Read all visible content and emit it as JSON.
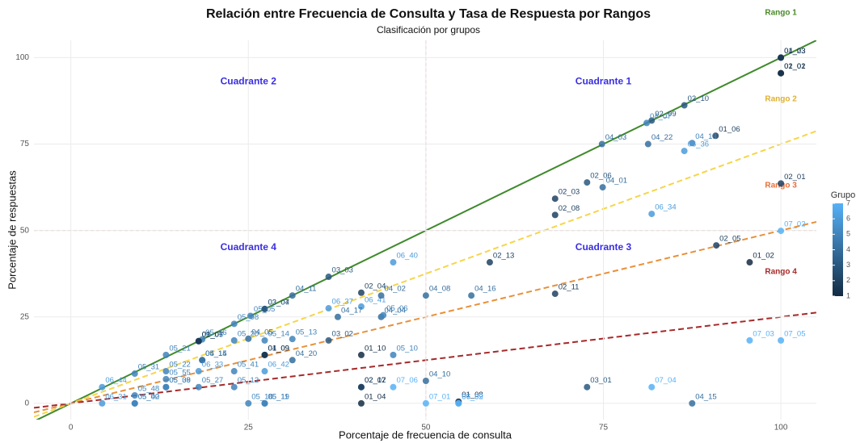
{
  "chart_data": {
    "type": "scatter",
    "title": "Relación entre Frecuencia de Consulta y Tasa de Respuesta por Rangos",
    "subtitle": "Clasificación por grupos",
    "x_label": "Porcentaje de frecuencia de consulta",
    "y_label": "Porcentaje de respuestas",
    "xlim": [
      -5.2,
      105
    ],
    "ylim": [
      -4.7,
      105
    ],
    "xticks": [
      0,
      25,
      50,
      75,
      100
    ],
    "yticks": [
      0,
      25,
      50,
      75,
      100
    ],
    "grid": true,
    "thresholds": {
      "x": 50,
      "y": 50
    },
    "quadrants": [
      "Cuadrante 1",
      "Cuadrante 2",
      "Cuadrante 3",
      "Cuadrante 4"
    ],
    "reference_lines": [
      {
        "name": "Rango 1",
        "slope": 1,
        "color": "#3f8a2c",
        "label_color": "#4a8a2a",
        "dashed": false
      },
      {
        "name": "Rango 2",
        "slope": 0.75,
        "color": "#f6d54a",
        "label_color": "#e0b030",
        "dashed": true
      },
      {
        "name": "Rango 3",
        "slope": 0.5,
        "color": "#e8903a",
        "label_color": "#e8703a",
        "dashed": true
      },
      {
        "name": "Rango 4",
        "slope": 0.25,
        "color": "#a52a2a",
        "label_color": "#a52a2a",
        "dashed": true
      }
    ],
    "legend": {
      "title": "Grupo",
      "ticks": [
        1,
        2,
        3,
        4,
        5,
        6,
        7
      ],
      "color_low": "#132b43",
      "color_high": "#56b1f7"
    },
    "points": [
      {
        "label": "04_23",
        "x": 100,
        "y": 100,
        "group": 4
      },
      {
        "label": "01_03",
        "x": 100,
        "y": 100,
        "group": 1
      },
      {
        "label": "02_02",
        "x": 100,
        "y": 95.5,
        "group": 2
      },
      {
        "label": "01_01",
        "x": 100,
        "y": 95.5,
        "group": 1
      },
      {
        "label": "02_10",
        "x": 86.4,
        "y": 86.2,
        "group": 3
      },
      {
        "label": "02_09",
        "x": 81.8,
        "y": 81.8,
        "group": 3
      },
      {
        "label": "04_07",
        "x": 81.1,
        "y": 81.1,
        "group": 5
      },
      {
        "label": "01_06",
        "x": 90.8,
        "y": 77.4,
        "group": 2
      },
      {
        "label": "04_22",
        "x": 81.3,
        "y": 75,
        "group": 4
      },
      {
        "label": "04_13",
        "x": 87.5,
        "y": 75.3,
        "group": 5
      },
      {
        "label": "06_36",
        "x": 86.4,
        "y": 73,
        "group": 6
      },
      {
        "label": "04_03",
        "x": 74.8,
        "y": 75,
        "group": 4
      },
      {
        "label": "02_06",
        "x": 72.7,
        "y": 63.9,
        "group": 3
      },
      {
        "label": "04_01",
        "x": 74.9,
        "y": 62.5,
        "group": 4
      },
      {
        "label": "02_03",
        "x": 68.2,
        "y": 59.2,
        "group": 2
      },
      {
        "label": "02_08",
        "x": 68.2,
        "y": 54.5,
        "group": 2
      },
      {
        "label": "06_34",
        "x": 81.8,
        "y": 54.8,
        "group": 6
      },
      {
        "label": "02_01",
        "x": 100,
        "y": 63.6,
        "group": 2
      },
      {
        "label": "07_02",
        "x": 100,
        "y": 49.9,
        "group": 7
      },
      {
        "label": "02_05",
        "x": 90.9,
        "y": 45.7,
        "group": 2
      },
      {
        "label": "01_02",
        "x": 95.6,
        "y": 40.8,
        "group": 1
      },
      {
        "label": "07_05",
        "x": 100,
        "y": 18.2,
        "group": 7
      },
      {
        "label": "07_03",
        "x": 95.6,
        "y": 18.2,
        "group": 7
      },
      {
        "label": "04_15",
        "x": 87.5,
        "y": 0,
        "group": 4
      },
      {
        "label": "07_04",
        "x": 81.8,
        "y": 4.7,
        "group": 7
      },
      {
        "label": "03_01",
        "x": 72.7,
        "y": 4.7,
        "group": 3
      },
      {
        "label": "02_13",
        "x": 59,
        "y": 40.8,
        "group": 2
      },
      {
        "label": "04_16",
        "x": 56.4,
        "y": 31.2,
        "group": 4
      },
      {
        "label": "02_11",
        "x": 68.2,
        "y": 31.7,
        "group": 2
      },
      {
        "label": "01_08",
        "x": 54.6,
        "y": 0.5,
        "group": 1
      },
      {
        "label": "06_32",
        "x": 54.6,
        "y": 0,
        "group": 6
      },
      {
        "label": "07_09",
        "x": 54.6,
        "y": 0,
        "group": 7
      },
      {
        "label": "07_01",
        "x": 50,
        "y": 0,
        "group": 7
      },
      {
        "label": "04_10",
        "x": 50,
        "y": 6.5,
        "group": 4
      },
      {
        "label": "04_08",
        "x": 50,
        "y": 31.2,
        "group": 4
      },
      {
        "label": "05_10",
        "x": 45.4,
        "y": 14,
        "group": 5
      },
      {
        "label": "07_06",
        "x": 45.4,
        "y": 4.7,
        "group": 7
      },
      {
        "label": "06_40",
        "x": 45.4,
        "y": 40.8,
        "group": 6
      },
      {
        "label": "01_10",
        "x": 40.9,
        "y": 14,
        "group": 1
      },
      {
        "label": "02_07",
        "x": 40.9,
        "y": 4.7,
        "group": 2
      },
      {
        "label": "02_12",
        "x": 40.9,
        "y": 4.7,
        "group": 2
      },
      {
        "label": "01_04",
        "x": 40.9,
        "y": 0,
        "group": 1
      },
      {
        "label": "02_04",
        "x": 40.9,
        "y": 32,
        "group": 2
      },
      {
        "label": "06_41",
        "x": 40.9,
        "y": 28,
        "group": 6
      },
      {
        "label": "04_02",
        "x": 43.7,
        "y": 31.2,
        "group": 4
      },
      {
        "label": "04_04",
        "x": 43.7,
        "y": 25,
        "group": 4
      },
      {
        "label": "05_06",
        "x": 44,
        "y": 25.5,
        "group": 5
      },
      {
        "label": "03_02",
        "x": 36.3,
        "y": 18.2,
        "group": 3
      },
      {
        "label": "04_17",
        "x": 37.6,
        "y": 25,
        "group": 4
      },
      {
        "label": "06_37",
        "x": 36.3,
        "y": 27.5,
        "group": 6
      },
      {
        "label": "03_03",
        "x": 36.3,
        "y": 36.6,
        "group": 3
      },
      {
        "label": "04_11",
        "x": 31.2,
        "y": 31.2,
        "group": 4
      },
      {
        "label": "03_04",
        "x": 27.3,
        "y": 27.3,
        "group": 3
      },
      {
        "label": "03_07",
        "x": 27.3,
        "y": 27.3,
        "group": 3
      },
      {
        "label": "05_05",
        "x": 25.3,
        "y": 25.3,
        "group": 5
      },
      {
        "label": "05_08",
        "x": 23,
        "y": 23,
        "group": 5
      },
      {
        "label": "05_13",
        "x": 31.2,
        "y": 18.6,
        "group": 5
      },
      {
        "label": "05_14",
        "x": 27.3,
        "y": 18.2,
        "group": 5
      },
      {
        "label": "04_20",
        "x": 31.2,
        "y": 12.5,
        "group": 4
      },
      {
        "label": "04_05",
        "x": 25,
        "y": 18.7,
        "group": 4
      },
      {
        "label": "04_09",
        "x": 27.3,
        "y": 14,
        "group": 4
      },
      {
        "label": "01_09",
        "x": 27.3,
        "y": 14,
        "group": 1
      },
      {
        "label": "05_15",
        "x": 18.5,
        "y": 12.5,
        "group": 5
      },
      {
        "label": "04_14",
        "x": 18.5,
        "y": 12.5,
        "group": 4
      },
      {
        "label": "05_20",
        "x": 23,
        "y": 18.2,
        "group": 5
      },
      {
        "label": "05_16",
        "x": 18.5,
        "y": 18.5,
        "group": 5
      },
      {
        "label": "03_05",
        "x": 18,
        "y": 18,
        "group": 3
      },
      {
        "label": "06_05",
        "x": 18,
        "y": 18,
        "group": 6
      },
      {
        "label": "01_07",
        "x": 18,
        "y": 18,
        "group": 1
      },
      {
        "label": "05_21",
        "x": 13.4,
        "y": 14,
        "group": 5
      },
      {
        "label": "05_22",
        "x": 13.4,
        "y": 9.3,
        "group": 5
      },
      {
        "label": "06_33",
        "x": 18,
        "y": 9.3,
        "group": 6
      },
      {
        "label": "05_41",
        "x": 23,
        "y": 9.3,
        "group": 5
      },
      {
        "label": "06_42",
        "x": 27.3,
        "y": 9.3,
        "group": 6
      },
      {
        "label": "05_38",
        "x": 13.4,
        "y": 4.7,
        "group": 5
      },
      {
        "label": "05_27",
        "x": 18,
        "y": 4.7,
        "group": 5
      },
      {
        "label": "05_12",
        "x": 23,
        "y": 4.7,
        "group": 5
      },
      {
        "label": "05_18",
        "x": 25,
        "y": 0,
        "group": 5
      },
      {
        "label": "05_19",
        "x": 27.3,
        "y": 0,
        "group": 5
      },
      {
        "label": "05_11",
        "x": 27.3,
        "y": 0,
        "group": 5
      },
      {
        "label": "05_31",
        "x": 9,
        "y": 8.6,
        "group": 5
      },
      {
        "label": "05_55",
        "x": 13.4,
        "y": 7,
        "group": 5
      },
      {
        "label": "05_09",
        "x": 13.4,
        "y": 4.7,
        "group": 5
      },
      {
        "label": "05_48",
        "x": 9,
        "y": 2.3,
        "group": 5
      },
      {
        "label": "05_02",
        "x": 9,
        "y": 0,
        "group": 5
      },
      {
        "label": "05_40",
        "x": 9,
        "y": 0,
        "group": 5
      },
      {
        "label": "06_31",
        "x": 4.4,
        "y": 0,
        "group": 6
      },
      {
        "label": "06_44",
        "x": 4.4,
        "y": 4.7,
        "group": 6
      }
    ]
  }
}
